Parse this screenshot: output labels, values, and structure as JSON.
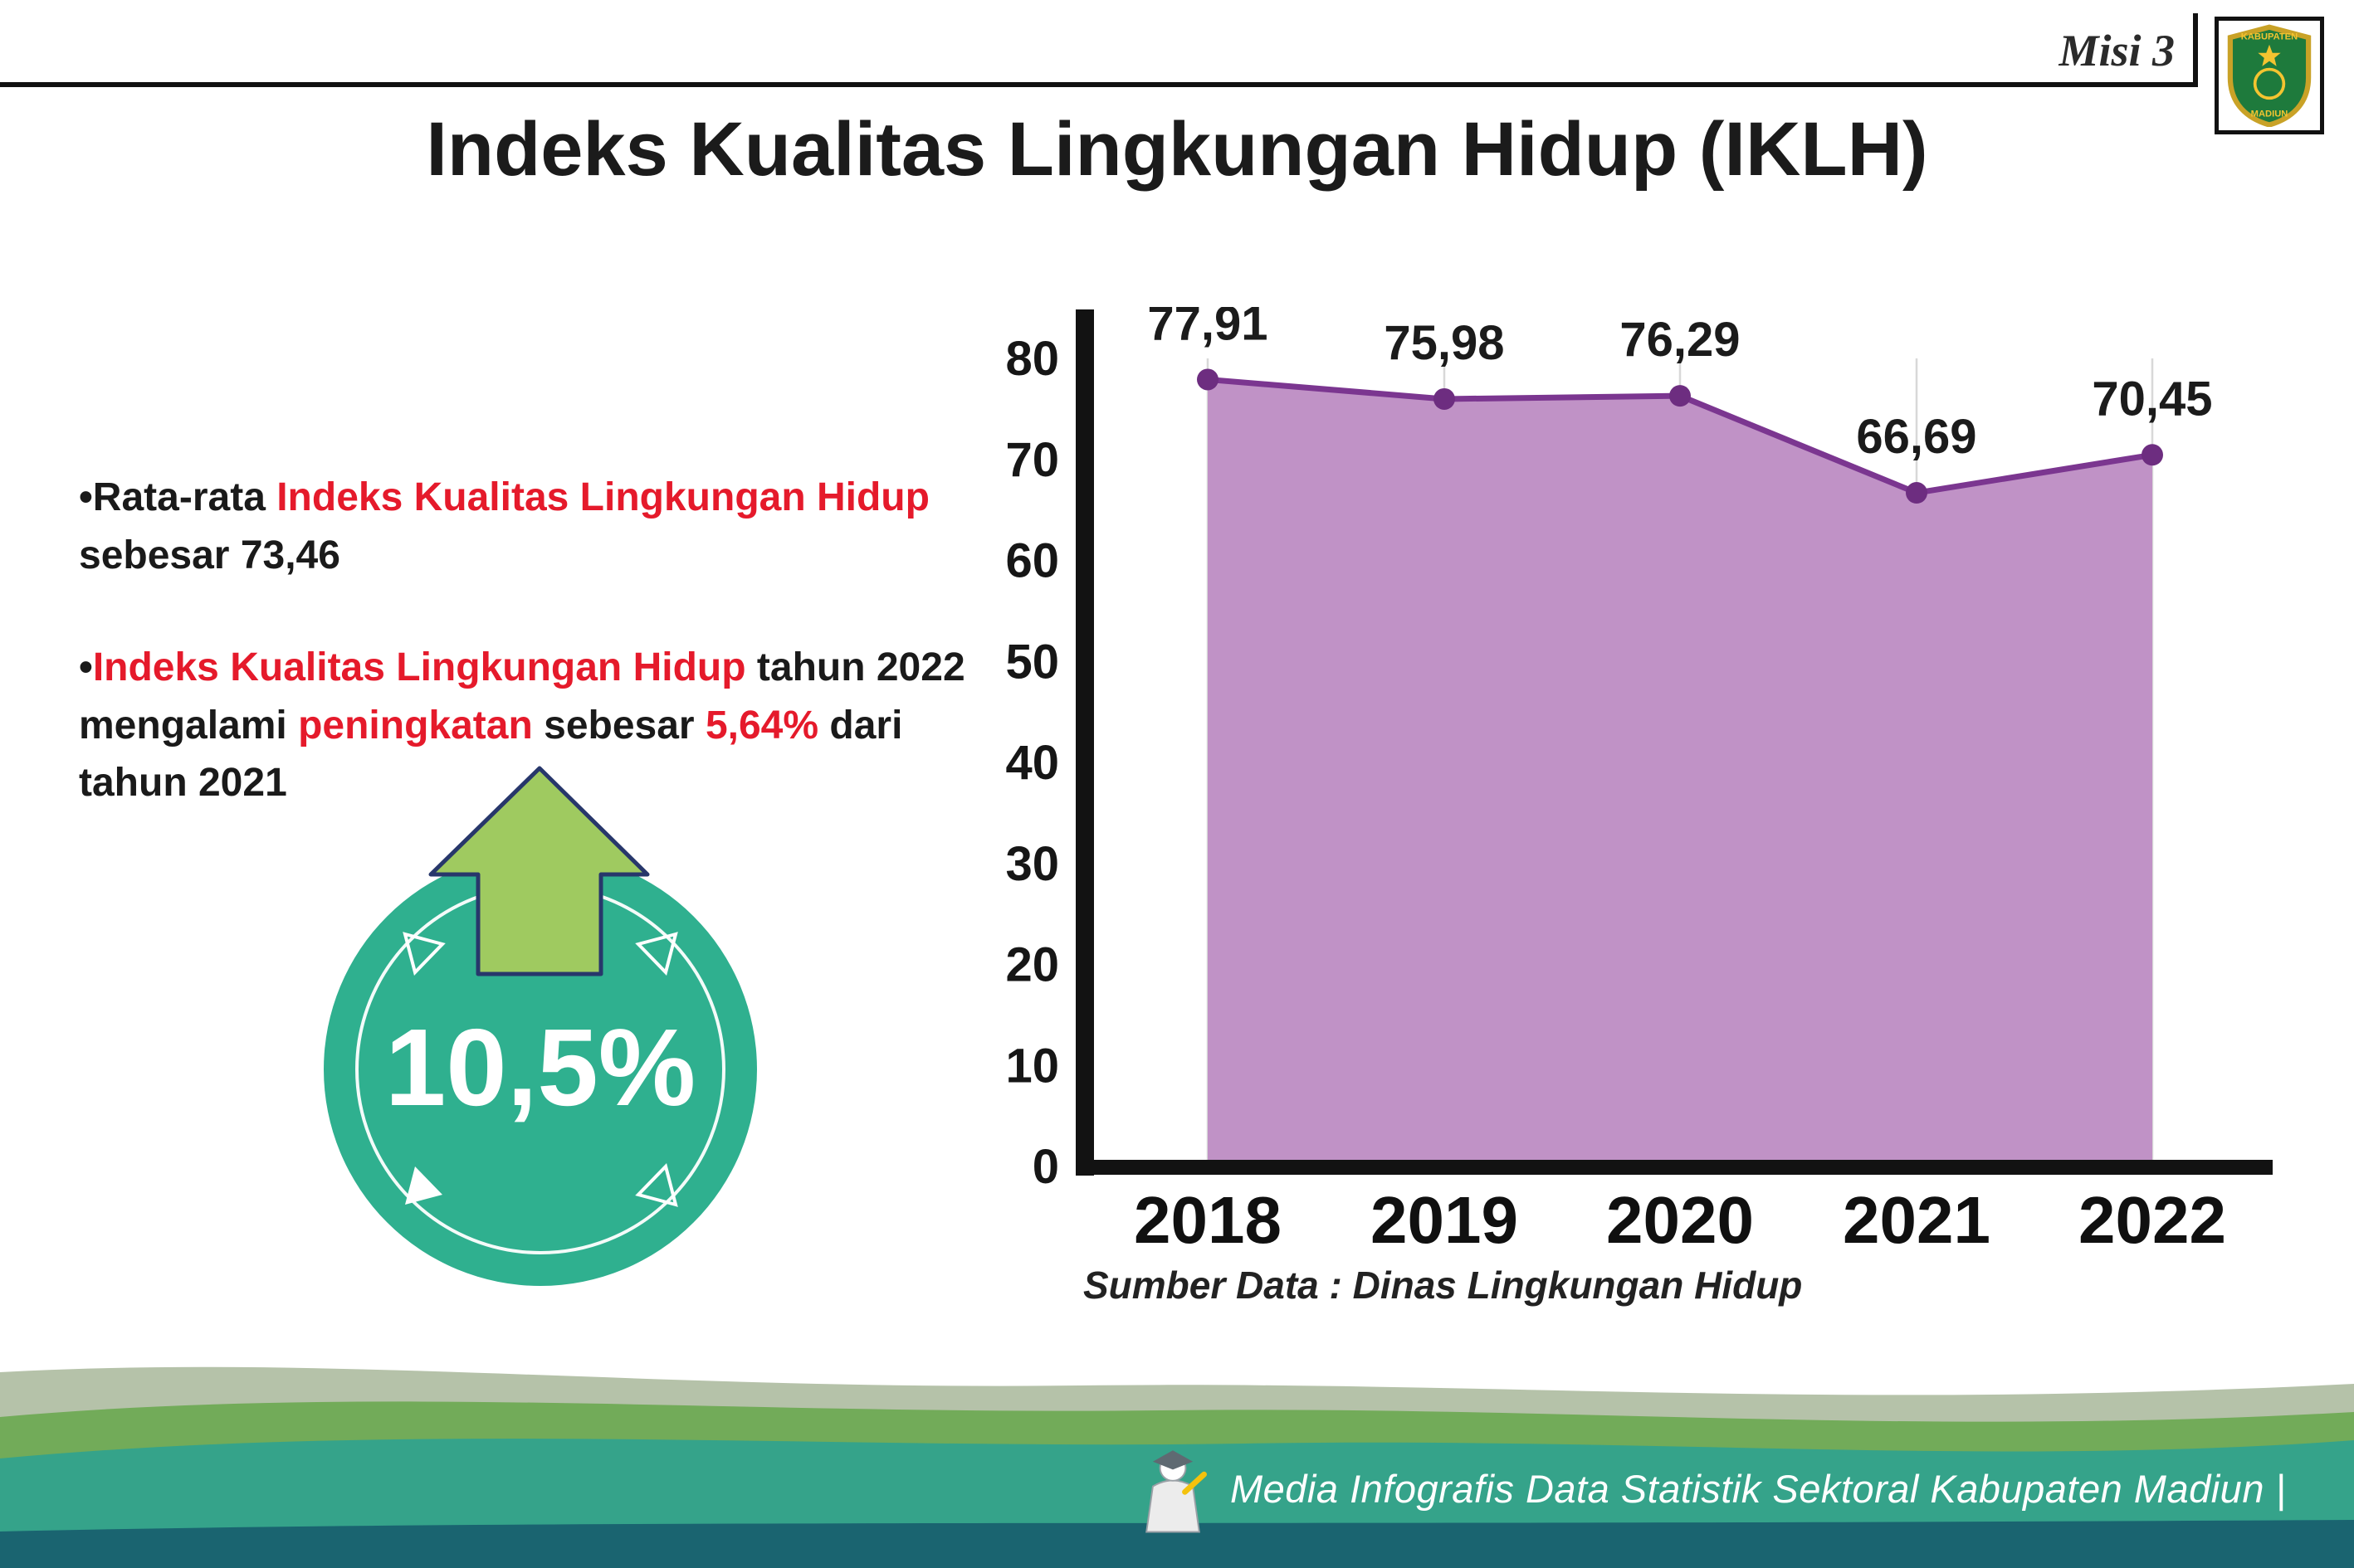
{
  "header": {
    "misi_label": "Misi 3",
    "logo": {
      "top_text": "KABUPATEN",
      "bottom_text": "MADIUN"
    }
  },
  "title": "Indeks Kualitas Lingkungan Hidup (IKLH)",
  "bullets": [
    {
      "lines": [
        [
          {
            "t": "•Rata-rata "
          },
          {
            "t": "Indeks Kualitas Lingkungan Hidup"
          }
        ],
        [
          {
            "t": "sebesar 73,46"
          }
        ]
      ]
    },
    {
      "lines": [
        [
          {
            "t": "•"
          },
          {
            "t": "Indeks Kualitas Lingkungan Hidup"
          },
          {
            "t": " tahun 2022"
          }
        ],
        [
          {
            "t": "mengalami "
          },
          {
            "t": "peningkatan"
          },
          {
            "t": " sebesar "
          },
          {
            "t": "5,64%"
          },
          {
            "t": " dari"
          }
        ],
        [
          {
            "t": "tahun 2021"
          }
        ]
      ]
    }
  ],
  "badge": {
    "value": "10,5%"
  },
  "chart": {
    "source_note": "Sumber Data : Dinas Lingkungan Hidup"
  },
  "chart_data": {
    "type": "area",
    "categories": [
      "2018",
      "2019",
      "2020",
      "2021",
      "2022"
    ],
    "values": [
      77.91,
      75.98,
      76.29,
      66.69,
      70.45
    ],
    "labels": [
      "77,91",
      "75,98",
      "76,29",
      "66,69",
      "70,45"
    ],
    "title": "Indeks Kualitas Lingkungan Hidup (IKLH)",
    "xlabel": "",
    "ylabel": "",
    "ylim": [
      0,
      80
    ],
    "yticks": [
      0,
      10,
      20,
      30,
      40,
      50,
      60,
      70,
      80
    ],
    "grid": "vertical-light",
    "legend": "none",
    "line_color": "#7b3690",
    "fill_color": "#c092c6",
    "point_color": "#6d2d80"
  },
  "footer": {
    "credit": "Media Infografis Data Statistik Sektoral Kabupaten Madiun |"
  },
  "colors": {
    "accent_red": "#e51a2b",
    "badge_teal": "#2fb08f",
    "arrow_green": "#9fca60",
    "footer_teal": "#35a38a",
    "footer_green": "#72ab59",
    "footer_sage": "#b5c2a9",
    "footer_dark": "#1a6470"
  }
}
